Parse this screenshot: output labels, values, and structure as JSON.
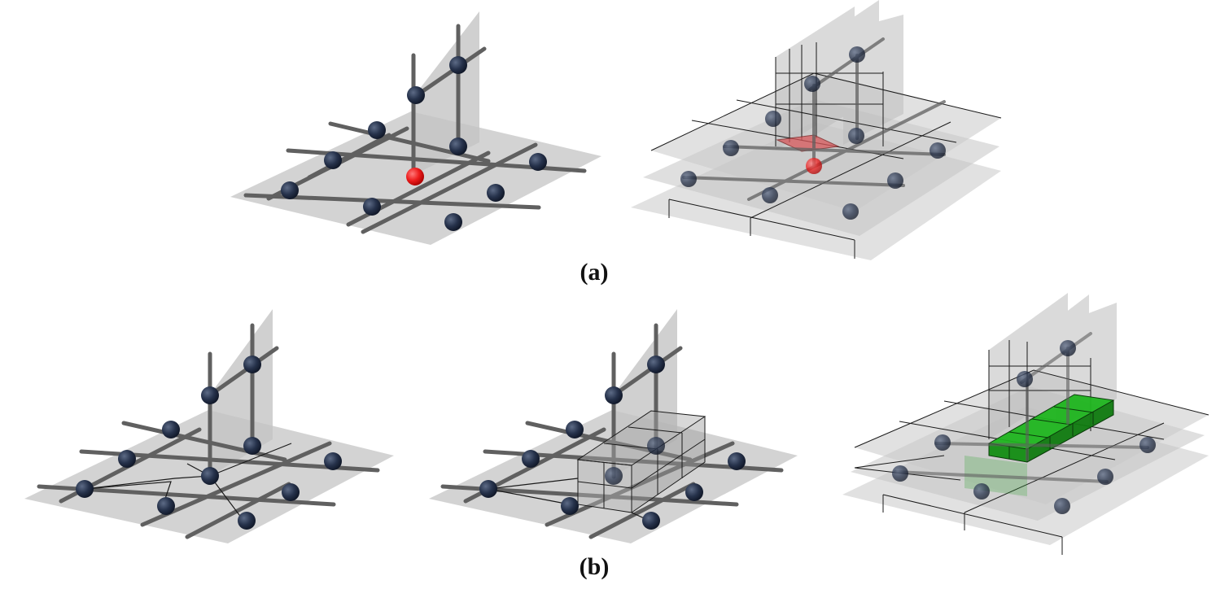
{
  "figure": {
    "captions": {
      "a": "(a)",
      "b": "(b)"
    },
    "colors": {
      "plane": "#c9c9c9",
      "rod": "#5e5e5e",
      "node": "#1e2a40",
      "highlight_node": "#e3171b",
      "edge": "#1a1a1a",
      "highlight_face": "#d9585b",
      "green_block": "#13a313"
    },
    "panels": [
      {
        "id": "a-left",
        "type": "lattice",
        "highlight": true
      },
      {
        "id": "a-right",
        "type": "lattice-with-cells",
        "highlight": true
      },
      {
        "id": "b-left",
        "type": "lattice-with-links"
      },
      {
        "id": "b-middle",
        "type": "lattice-with-box"
      },
      {
        "id": "b-right",
        "type": "lattice-with-green-blocks"
      }
    ]
  }
}
